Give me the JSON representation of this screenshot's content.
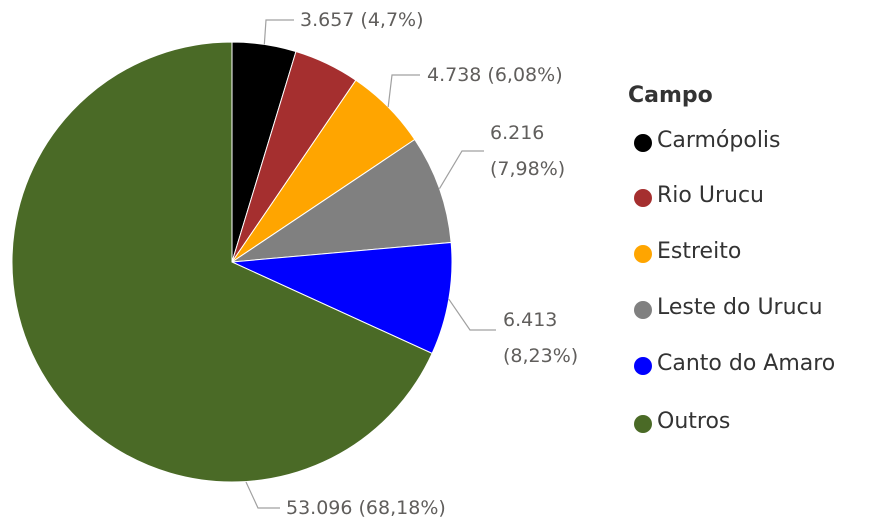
{
  "chart_data": {
    "type": "pie",
    "legend_title": "Campo",
    "categories": [
      "Carmópolis",
      "Rio Urucu",
      "Estreito",
      "Leste do Urucu",
      "Canto do Amaro",
      "Outros"
    ],
    "values": [
      3657,
      3756,
      4738,
      6216,
      6413,
      53096
    ],
    "value_labels": [
      "3.657 (4,7%)",
      null,
      "4.738 (6,08%)",
      "6.216 (7,98%)",
      "6.413 (8,23%)",
      "53.096 (68,18%)"
    ],
    "colors": [
      "#000000",
      "#a52f2f",
      "#ffa500",
      "#808080",
      "#0000ff",
      "#4a6a26"
    ]
  }
}
